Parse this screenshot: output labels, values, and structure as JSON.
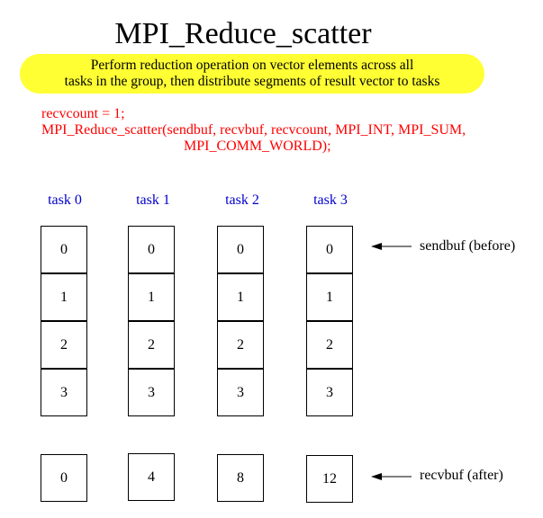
{
  "title": "MPI_Reduce_scatter",
  "banner": {
    "line1": "Perform  reduction operation on vector elements across all",
    "line2": "tasks in the group, then distribute segments of result vector to tasks"
  },
  "code": {
    "line1": "recvcount = 1;",
    "line2": "MPI_Reduce_scatter(sendbuf, recvbuf, recvcount, MPI_INT, MPI_SUM,",
    "line3": "MPI_COMM_WORLD);"
  },
  "tasks": [
    {
      "label": "task 0",
      "sendbuf": [
        "0",
        "1",
        "2",
        "3"
      ],
      "recvbuf": "0"
    },
    {
      "label": "task 1",
      "sendbuf": [
        "0",
        "1",
        "2",
        "3"
      ],
      "recvbuf": "4"
    },
    {
      "label": "task 2",
      "sendbuf": [
        "0",
        "1",
        "2",
        "3"
      ],
      "recvbuf": "8"
    },
    {
      "label": "task 3",
      "sendbuf": [
        "0",
        "1",
        "2",
        "3"
      ],
      "recvbuf": "12"
    }
  ],
  "labels": {
    "sendbuf": "sendbuf (before)",
    "recvbuf": "recvbuf (after)"
  },
  "colors": {
    "banner": "#ffff33",
    "code": "#ff0000",
    "task_label": "#0000cc"
  }
}
